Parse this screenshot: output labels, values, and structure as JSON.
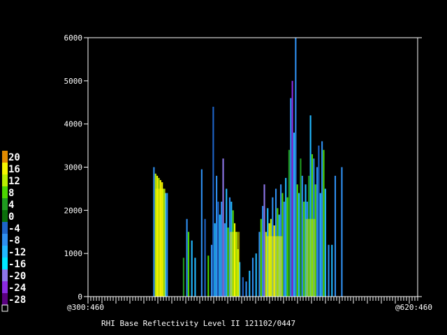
{
  "chart_data": {
    "type": "heatmap",
    "title": "RHI Base Reflectivity Level II 121102/0447",
    "xlabel": "",
    "ylabel": "",
    "x_range": [
      "@300:460",
      "@620:460"
    ],
    "x_start_label": "@300:460",
    "x_end_label": "@620:460",
    "ylim": [
      0,
      6000
    ],
    "y_ticks": [
      "0",
      "1000",
      "2000",
      "3000",
      "4000",
      "5000",
      "6000"
    ],
    "legend": {
      "placement": "left",
      "entries": [
        {
          "label": "20",
          "color": "#e08a00"
        },
        {
          "label": "16",
          "color": "#f5f500"
        },
        {
          "label": "12",
          "color": "#b8ee00"
        },
        {
          "label": "8",
          "color": "#4cd600"
        },
        {
          "label": "4",
          "color": "#1f9a1f"
        },
        {
          "label": "0",
          "color": "#0a6f0a"
        },
        {
          "label": "-4",
          "color": "#1e64c8"
        },
        {
          "label": "-8",
          "color": "#2f8ff0"
        },
        {
          "label": "-12",
          "color": "#22b8ff"
        },
        {
          "label": "-16",
          "color": "#00e8ff"
        },
        {
          "label": "-20",
          "color": "#8d76e8"
        },
        {
          "label": "-24",
          "color": "#8a2be2"
        },
        {
          "label": "-28",
          "color": "#5a0080"
        }
      ],
      "extra_swatch": "#000000"
    },
    "columns": [
      {
        "x": 0.2,
        "top": 3000,
        "c": "#2f8ff0"
      },
      {
        "x": 0.205,
        "top": 2850,
        "c": "#b8ee00"
      },
      {
        "x": 0.21,
        "top": 2800,
        "c": "#f5f500"
      },
      {
        "x": 0.215,
        "top": 2750,
        "c": "#b8ee00"
      },
      {
        "x": 0.22,
        "top": 2700,
        "c": "#f5f500"
      },
      {
        "x": 0.225,
        "top": 2650,
        "c": "#f5f500"
      },
      {
        "x": 0.23,
        "top": 2500,
        "c": "#4cd600"
      },
      {
        "x": 0.235,
        "top": 2400,
        "c": "#22b8ff"
      },
      {
        "x": 0.24,
        "top": 2400,
        "c": "#2f8ff0"
      },
      {
        "x": 0.29,
        "top": 900,
        "c": "#1f9a1f"
      },
      {
        "x": 0.3,
        "top": 1800,
        "c": "#2f8ff0"
      },
      {
        "x": 0.305,
        "top": 1500,
        "c": "#4cd600"
      },
      {
        "x": 0.315,
        "top": 1300,
        "c": "#22b8ff"
      },
      {
        "x": 0.325,
        "top": 900,
        "c": "#22b8ff"
      },
      {
        "x": 0.345,
        "top": 2950,
        "c": "#2f8ff0"
      },
      {
        "x": 0.355,
        "top": 1800,
        "c": "#1e64c8"
      },
      {
        "x": 0.365,
        "top": 950,
        "c": "#4cd600"
      },
      {
        "x": 0.375,
        "top": 1200,
        "c": "#2f8ff0"
      },
      {
        "x": 0.38,
        "top": 4400,
        "c": "#1e64c8"
      },
      {
        "x": 0.385,
        "top": 1700,
        "c": "#22b8ff"
      },
      {
        "x": 0.39,
        "top": 2800,
        "c": "#2f8ff0"
      },
      {
        "x": 0.395,
        "top": 2200,
        "c": "#1e64c8"
      },
      {
        "x": 0.4,
        "top": 1900,
        "c": "#22b8ff"
      },
      {
        "x": 0.405,
        "top": 2200,
        "c": "#2f8ff0"
      },
      {
        "x": 0.41,
        "top": 3200,
        "c": "#8d76e8"
      },
      {
        "x": 0.415,
        "top": 1700,
        "c": "#2f8ff0"
      },
      {
        "x": 0.42,
        "top": 2500,
        "c": "#22b8ff"
      },
      {
        "x": 0.425,
        "top": 1600,
        "c": "#4cd600"
      },
      {
        "x": 0.43,
        "top": 2300,
        "c": "#2f8ff0"
      },
      {
        "x": 0.435,
        "top": 2200,
        "c": "#22b8ff"
      },
      {
        "x": 0.44,
        "top": 2000,
        "c": "#4cd600"
      },
      {
        "x": 0.445,
        "top": 1700,
        "c": "#f5f500"
      },
      {
        "x": 0.45,
        "top": 1500,
        "c": "#4cd600"
      },
      {
        "x": 0.455,
        "top": 1100,
        "c": "#b8ee00"
      },
      {
        "x": 0.46,
        "top": 800,
        "c": "#22b8ff"
      },
      {
        "x": 0.47,
        "top": 450,
        "c": "#1e64c8"
      },
      {
        "x": 0.48,
        "top": 350,
        "c": "#2f8ff0"
      },
      {
        "x": 0.49,
        "top": 600,
        "c": "#22b8ff"
      },
      {
        "x": 0.5,
        "top": 900,
        "c": "#2f8ff0"
      },
      {
        "x": 0.51,
        "top": 1000,
        "c": "#22b8ff"
      },
      {
        "x": 0.52,
        "top": 1500,
        "c": "#2f8ff0"
      },
      {
        "x": 0.525,
        "top": 1800,
        "c": "#4cd600"
      },
      {
        "x": 0.53,
        "top": 2100,
        "c": "#2f8ff0"
      },
      {
        "x": 0.535,
        "top": 2600,
        "c": "#8d76e8"
      },
      {
        "x": 0.54,
        "top": 1500,
        "c": "#b8ee00"
      },
      {
        "x": 0.545,
        "top": 2050,
        "c": "#22b8ff"
      },
      {
        "x": 0.55,
        "top": 1700,
        "c": "#f5f500"
      },
      {
        "x": 0.555,
        "top": 1800,
        "c": "#b8ee00"
      },
      {
        "x": 0.56,
        "top": 2300,
        "c": "#2f8ff0"
      },
      {
        "x": 0.565,
        "top": 1650,
        "c": "#f5f500"
      },
      {
        "x": 0.57,
        "top": 2500,
        "c": "#2f8ff0"
      },
      {
        "x": 0.575,
        "top": 2050,
        "c": "#4cd600"
      },
      {
        "x": 0.58,
        "top": 1900,
        "c": "#22b8ff"
      },
      {
        "x": 0.585,
        "top": 2600,
        "c": "#2f8ff0"
      },
      {
        "x": 0.59,
        "top": 2400,
        "c": "#4cd600"
      },
      {
        "x": 0.595,
        "top": 2200,
        "c": "#2f8ff0"
      },
      {
        "x": 0.6,
        "top": 2750,
        "c": "#22b8ff"
      },
      {
        "x": 0.605,
        "top": 2300,
        "c": "#4cd600"
      },
      {
        "x": 0.61,
        "top": 3400,
        "c": "#1f9a1f"
      },
      {
        "x": 0.615,
        "top": 4600,
        "c": "#2f8ff0"
      },
      {
        "x": 0.62,
        "top": 5000,
        "c": "#8a2be2"
      },
      {
        "x": 0.625,
        "top": 3800,
        "c": "#22b8ff"
      },
      {
        "x": 0.63,
        "top": 6000,
        "c": "#2f8ff0"
      },
      {
        "x": 0.635,
        "top": 2600,
        "c": "#4cd600"
      },
      {
        "x": 0.64,
        "top": 2400,
        "c": "#22b8ff"
      },
      {
        "x": 0.645,
        "top": 3200,
        "c": "#1f9a1f"
      },
      {
        "x": 0.65,
        "top": 2800,
        "c": "#2f8ff0"
      },
      {
        "x": 0.655,
        "top": 2200,
        "c": "#4cd600"
      },
      {
        "x": 0.66,
        "top": 2600,
        "c": "#22b8ff"
      },
      {
        "x": 0.665,
        "top": 2200,
        "c": "#2f8ff0"
      },
      {
        "x": 0.67,
        "top": 2800,
        "c": "#1f9a1f"
      },
      {
        "x": 0.675,
        "top": 4200,
        "c": "#22b8ff"
      },
      {
        "x": 0.68,
        "top": 3300,
        "c": "#4cd600"
      },
      {
        "x": 0.685,
        "top": 3200,
        "c": "#2f8ff0"
      },
      {
        "x": 0.69,
        "top": 2600,
        "c": "#4cd600"
      },
      {
        "x": 0.695,
        "top": 3000,
        "c": "#2f8ff0"
      },
      {
        "x": 0.7,
        "top": 3500,
        "c": "#1e64c8"
      },
      {
        "x": 0.705,
        "top": 2400,
        "c": "#22b8ff"
      },
      {
        "x": 0.71,
        "top": 3600,
        "c": "#2f8ff0"
      },
      {
        "x": 0.715,
        "top": 3400,
        "c": "#4cd600"
      },
      {
        "x": 0.72,
        "top": 2500,
        "c": "#22b8ff"
      },
      {
        "x": 0.73,
        "top": 1200,
        "c": "#2f8ff0"
      },
      {
        "x": 0.74,
        "top": 1200,
        "c": "#22b8ff"
      },
      {
        "x": 0.75,
        "top": 2800,
        "c": "#2f8ff0"
      },
      {
        "x": 0.77,
        "top": 3000,
        "c": "#2f8ff0"
      }
    ],
    "cores": [
      {
        "x0": 0.205,
        "x1": 0.235,
        "top": 2500,
        "c": "#f5f500"
      },
      {
        "x0": 0.43,
        "x1": 0.46,
        "top": 1500,
        "c": "#f5f500"
      },
      {
        "x0": 0.54,
        "x1": 0.59,
        "top": 1400,
        "c": "#f5f500"
      },
      {
        "x0": 0.66,
        "x1": 0.69,
        "top": 1800,
        "c": "#b8ee00"
      }
    ]
  }
}
